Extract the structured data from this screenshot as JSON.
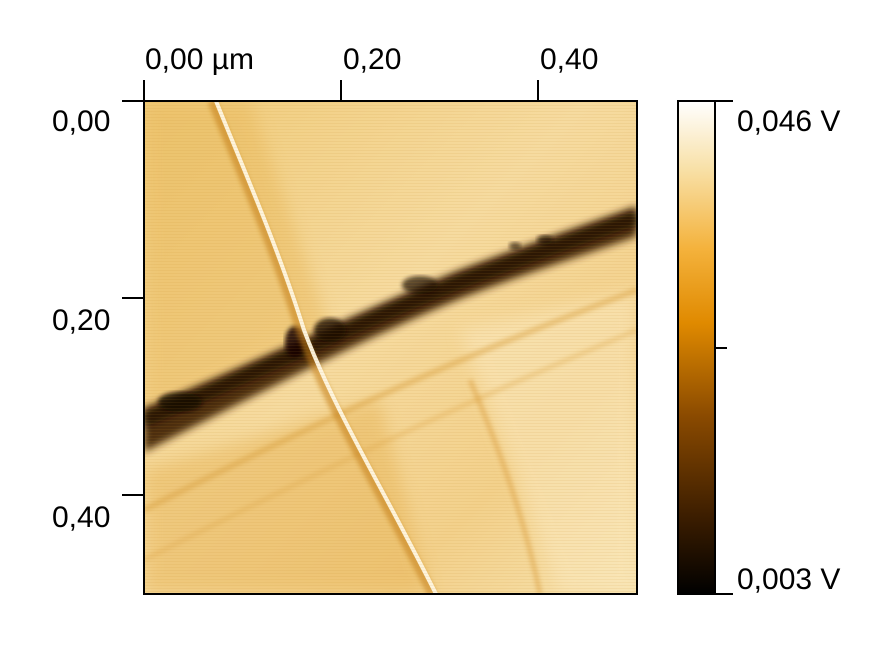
{
  "image": {
    "x_axis_ticks": [
      "0,00 µm",
      "0,20",
      "0,40"
    ],
    "y_axis_ticks": [
      "0,00",
      "0,20",
      "0,40"
    ],
    "colorbar": {
      "max_label": "0,046 V",
      "min_label": "0,003 V",
      "max_value": 0.046,
      "min_value": 0.003,
      "colors": [
        "#000000",
        "#3d1e00",
        "#8a4a00",
        "#e08a00",
        "#f4b23c",
        "#f8e0a6",
        "#ffffff"
      ]
    },
    "scan_colors": {
      "background_light": "#f3d696",
      "background_mid": "#e6b04e",
      "dark_band": "#2e1400",
      "bright_crack": "#fff6dc"
    }
  }
}
